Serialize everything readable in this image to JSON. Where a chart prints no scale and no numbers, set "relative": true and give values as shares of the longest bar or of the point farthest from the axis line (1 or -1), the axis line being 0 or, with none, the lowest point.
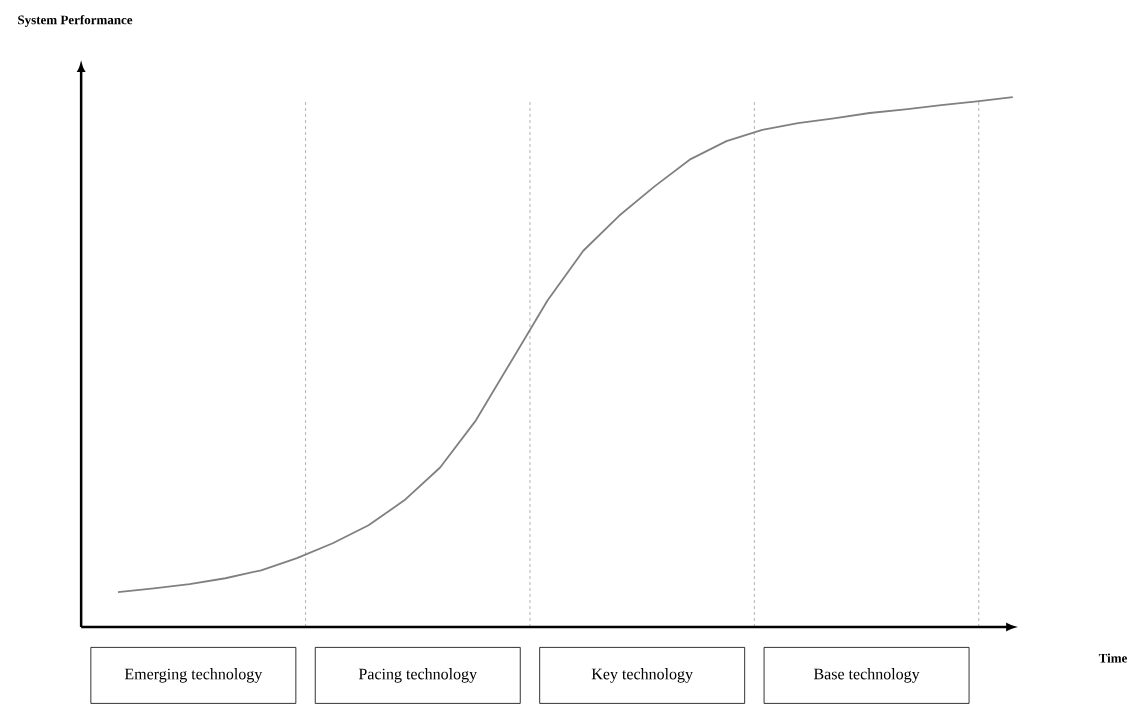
{
  "chart_data": {
    "type": "line",
    "relative": true,
    "categories": [
      null,
      null,
      null,
      null,
      null,
      null,
      null,
      null,
      null,
      null,
      null,
      null,
      null,
      null,
      null,
      null,
      null,
      null,
      null,
      null,
      null,
      null,
      null,
      null,
      null,
      null
    ],
    "values": [
      0.066,
      0.073,
      0.081,
      0.092,
      0.107,
      0.13,
      0.158,
      0.192,
      0.239,
      0.301,
      0.39,
      0.503,
      0.616,
      0.71,
      0.776,
      0.832,
      0.883,
      0.917,
      0.938,
      0.951,
      0.96,
      0.97,
      0.977,
      0.985,
      0.992,
      1.0
    ],
    "color": "#808080",
    "marker": "none",
    "line_style": "solid",
    "annotations": [
      "System Performance",
      "Emerging technology",
      "Pacing technology",
      "Key technology",
      "Base technology",
      "Time"
    ]
  }
}
